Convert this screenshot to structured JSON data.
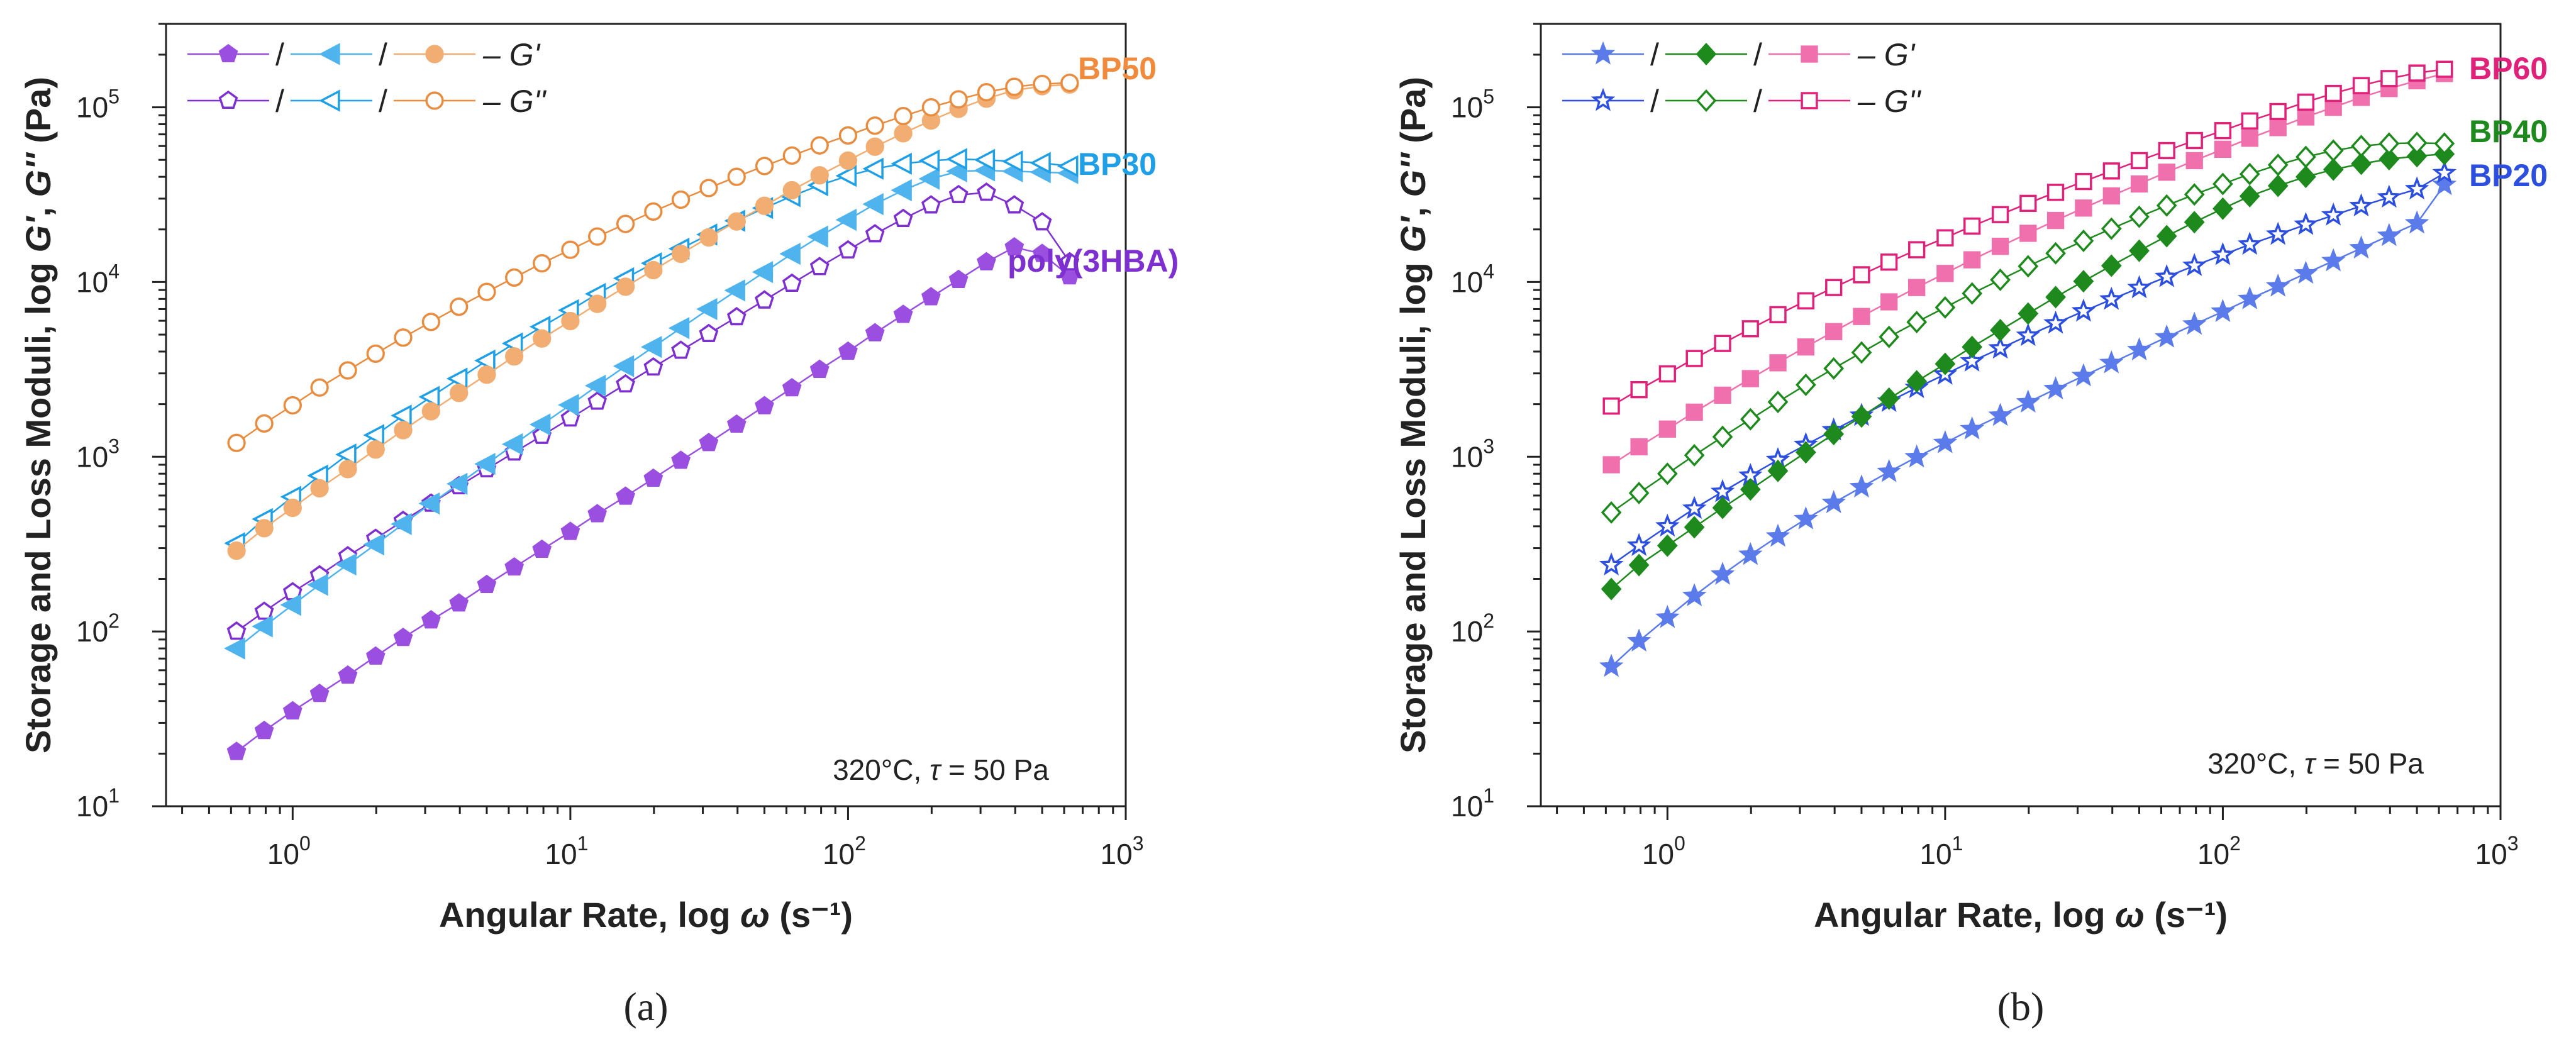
{
  "figure": {
    "panels": [
      {
        "id": "a",
        "letter": "(a)",
        "annotation_prefix": "320°C, ",
        "annotation_tau": "τ",
        "annotation_suffix": " = 50 Pa",
        "xlabel_prefix": "Angular Rate, log ",
        "xlabel_symbol": "ω",
        "xlabel_suffix": " (s⁻¹)",
        "ylabel_prefix": "Storage and Loss Moduli, log ",
        "ylabel_g1": "G'",
        "ylabel_sep": ", ",
        "ylabel_g2": "G''",
        "ylabel_suffix": " (Pa)",
        "legend_row1": "– G'",
        "legend_row2": "– G''",
        "legend_sep": "/"
      },
      {
        "id": "b",
        "letter": "(b)",
        "annotation_prefix": "320°C, ",
        "annotation_tau": "τ",
        "annotation_suffix": " = 50 Pa",
        "xlabel_prefix": "Angular Rate, log ",
        "xlabel_symbol": "ω",
        "xlabel_suffix": " (s⁻¹)",
        "ylabel_prefix": "Storage and Loss Moduli, log ",
        "ylabel_g1": "G'",
        "ylabel_sep": ", ",
        "ylabel_g2": "G''",
        "ylabel_suffix": " (Pa)",
        "legend_row1": "– G'",
        "legend_row2": "– G''",
        "legend_sep": "/"
      }
    ]
  },
  "chart_data": [
    {
      "type": "scatter",
      "panel": "a",
      "xscale": "log",
      "yscale": "log",
      "xlim": [
        0.35,
        1000
      ],
      "ylim": [
        10,
        300000
      ],
      "xticks": [
        {
          "base": "10",
          "exp": "0"
        },
        {
          "base": "10",
          "exp": "1"
        },
        {
          "base": "10",
          "exp": "2"
        },
        {
          "base": "10",
          "exp": "3"
        }
      ],
      "yticks": [
        {
          "base": "10",
          "exp": "1"
        },
        {
          "base": "10",
          "exp": "2"
        },
        {
          "base": "10",
          "exp": "3"
        },
        {
          "base": "10",
          "exp": "4"
        },
        {
          "base": "10",
          "exp": "5"
        }
      ],
      "x": [
        0.628,
        0.79,
        1.0,
        1.25,
        1.58,
        1.99,
        2.5,
        3.15,
        3.97,
        5.0,
        6.28,
        7.9,
        10.0,
        12.5,
        15.8,
        19.9,
        25.0,
        31.5,
        39.7,
        50.0,
        62.8,
        79.0,
        100,
        125,
        158,
        199,
        250,
        315,
        397,
        500,
        628
      ],
      "series": [
        {
          "name": "poly(3HBA) G'",
          "group": "poly(3HBA)",
          "modulus": "G'",
          "marker": "pentagon",
          "filled": true,
          "color": "#9B4FE0",
          "values": [
            20.5,
            27,
            35,
            44,
            56,
            72,
            92,
            116,
            145,
            185,
            233,
            294,
            372,
            470,
            592,
            750,
            950,
            1200,
            1530,
            1950,
            2470,
            3150,
            4000,
            5100,
            6500,
            8200,
            10300,
            13000,
            15800,
            14500,
            10800
          ]
        },
        {
          "name": "poly(3HBA) G''",
          "group": "poly(3HBA)",
          "modulus": "G''",
          "marker": "pentagon",
          "filled": false,
          "color": "#7E2FD0",
          "values": [
            100,
            130,
            168,
            210,
            270,
            340,
            430,
            540,
            680,
            850,
            1060,
            1320,
            1660,
            2070,
            2600,
            3250,
            4050,
            5050,
            6300,
            7850,
            9800,
            12200,
            15200,
            18800,
            23000,
            27500,
            31500,
            32500,
            27500,
            22000,
            13000
          ]
        },
        {
          "name": "BP30 G'",
          "group": "BP30",
          "modulus": "G'",
          "marker": "triangle-left",
          "filled": true,
          "color": "#4FB4EE",
          "values": [
            80,
            107,
            142,
            185,
            242,
            315,
            412,
            540,
            700,
            910,
            1180,
            1530,
            1980,
            2550,
            3300,
            4250,
            5450,
            7000,
            8950,
            11400,
            14500,
            18200,
            22700,
            27900,
            33500,
            39000,
            43000,
            43500,
            43000,
            42500,
            42000
          ]
        },
        {
          "name": "BP30 G''",
          "group": "BP30",
          "modulus": "G''",
          "marker": "triangle-left",
          "filled": false,
          "color": "#1E9FE6",
          "values": [
            320,
            440,
            590,
            780,
            1030,
            1330,
            1720,
            2200,
            2800,
            3550,
            4450,
            5550,
            6900,
            8550,
            10500,
            12800,
            15500,
            18700,
            22400,
            26500,
            31000,
            35800,
            40500,
            44500,
            47500,
            49500,
            50500,
            50000,
            49000,
            48000,
            46000
          ]
        },
        {
          "name": "BP50 G'",
          "group": "BP50",
          "modulus": "G'",
          "marker": "circle",
          "filled": true,
          "color": "#F2AE72",
          "values": [
            290,
            390,
            510,
            660,
            850,
            1100,
            1420,
            1820,
            2320,
            2950,
            3750,
            4750,
            5980,
            7500,
            9400,
            11700,
            14500,
            18000,
            22200,
            27300,
            33500,
            40800,
            49500,
            59500,
            71000,
            84000,
            98000,
            112000,
            125000,
            132000,
            135000
          ]
        },
        {
          "name": "BP50 G''",
          "group": "BP50",
          "modulus": "G''",
          "marker": "circle",
          "filled": false,
          "color": "#E88C3F",
          "values": [
            1200,
            1550,
            1970,
            2490,
            3120,
            3890,
            4810,
            5910,
            7220,
            8780,
            10600,
            12800,
            15300,
            18200,
            21500,
            25300,
            29600,
            34500,
            40000,
            46100,
            52900,
            60500,
            69000,
            78500,
            89000,
            100000,
            111000,
            122000,
            131000,
            136000,
            138000
          ]
        }
      ],
      "series_labels": [
        {
          "text": "BP50",
          "color": "#F08A3C"
        },
        {
          "text": "BP30",
          "color": "#1E9FE6"
        },
        {
          "text": "poly(3HBA)",
          "color": "#7E2FD0"
        }
      ]
    },
    {
      "type": "scatter",
      "panel": "b",
      "xscale": "log",
      "yscale": "log",
      "xlim": [
        0.35,
        1000
      ],
      "ylim": [
        10,
        300000
      ],
      "xticks": [
        {
          "base": "10",
          "exp": "0"
        },
        {
          "base": "10",
          "exp": "1"
        },
        {
          "base": "10",
          "exp": "2"
        },
        {
          "base": "10",
          "exp": "3"
        }
      ],
      "yticks": [
        {
          "base": "10",
          "exp": "1"
        },
        {
          "base": "10",
          "exp": "2"
        },
        {
          "base": "10",
          "exp": "3"
        },
        {
          "base": "10",
          "exp": "4"
        },
        {
          "base": "10",
          "exp": "5"
        }
      ],
      "x": [
        0.628,
        0.79,
        1.0,
        1.25,
        1.58,
        1.99,
        2.5,
        3.15,
        3.97,
        5.0,
        6.28,
        7.9,
        10.0,
        12.5,
        15.8,
        19.9,
        25.0,
        31.5,
        39.7,
        50.0,
        62.8,
        79.0,
        100,
        125,
        158,
        199,
        250,
        315,
        397,
        500,
        628
      ],
      "series": [
        {
          "name": "BP20 G'",
          "group": "BP20",
          "modulus": "G'",
          "marker": "star",
          "filled": true,
          "color": "#5B7BEA",
          "values": [
            63,
            88,
            120,
            160,
            212,
            275,
            350,
            440,
            545,
            670,
            820,
            995,
            1200,
            1440,
            1720,
            2050,
            2440,
            2900,
            3440,
            4080,
            4830,
            5720,
            6770,
            8000,
            9450,
            11200,
            13200,
            15600,
            18400,
            21700,
            36000
          ]
        },
        {
          "name": "BP20 G''",
          "group": "BP20",
          "modulus": "G''",
          "marker": "star",
          "filled": false,
          "color": "#2D4FE0",
          "values": [
            240,
            310,
            400,
            505,
            630,
            780,
            960,
            1170,
            1420,
            1720,
            2070,
            2480,
            2960,
            3520,
            4170,
            4930,
            5800,
            6800,
            7950,
            9250,
            10700,
            12400,
            14300,
            16400,
            18700,
            21300,
            24100,
            27200,
            30500,
            34000,
            42000
          ]
        },
        {
          "name": "BP40 G'",
          "group": "BP40",
          "modulus": "G'",
          "marker": "diamond",
          "filled": true,
          "color": "#1E8A1E",
          "values": [
            175,
            240,
            310,
            395,
            510,
            650,
            830,
            1060,
            1350,
            1700,
            2150,
            2700,
            3400,
            4250,
            5300,
            6600,
            8200,
            10100,
            12400,
            15100,
            18300,
            22000,
            26300,
            31000,
            35500,
            40000,
            44000,
            47500,
            50500,
            52500,
            54000
          ]
        },
        {
          "name": "BP40 G''",
          "group": "BP40",
          "modulus": "G''",
          "marker": "diamond",
          "filled": false,
          "color": "#1E8A1E",
          "values": [
            480,
            620,
            800,
            1020,
            1300,
            1640,
            2060,
            2580,
            3200,
            3950,
            4850,
            5900,
            7150,
            8600,
            10300,
            12300,
            14600,
            17200,
            20200,
            23600,
            27400,
            31700,
            36400,
            41500,
            46800,
            52000,
            56500,
            60000,
            62000,
            62500,
            62000
          ]
        },
        {
          "name": "BP60 G'",
          "group": "BP60",
          "modulus": "G'",
          "marker": "square",
          "filled": true,
          "color": "#F070AE",
          "values": [
            900,
            1140,
            1440,
            1800,
            2250,
            2800,
            3450,
            4250,
            5200,
            6350,
            7700,
            9300,
            11200,
            13400,
            16000,
            19000,
            22500,
            26500,
            31100,
            36400,
            42500,
            49500,
            57500,
            66500,
            76500,
            88000,
            100000,
            114000,
            128000,
            142000,
            156000
          ]
        },
        {
          "name": "BP60 G''",
          "group": "BP60",
          "modulus": "G''",
          "marker": "square",
          "filled": false,
          "color": "#E0217A",
          "values": [
            1950,
            2420,
            2980,
            3650,
            4450,
            5400,
            6500,
            7800,
            9300,
            11000,
            13000,
            15300,
            17900,
            20900,
            24300,
            28200,
            32600,
            37600,
            43200,
            49500,
            56500,
            64500,
            73500,
            83500,
            94500,
            107000,
            120000,
            133000,
            146000,
            157000,
            165000
          ]
        }
      ],
      "series_labels": [
        {
          "text": "BP60",
          "color": "#E0217A"
        },
        {
          "text": "BP40",
          "color": "#1E8A1E"
        },
        {
          "text": "BP20",
          "color": "#2D4FE0"
        }
      ]
    }
  ]
}
